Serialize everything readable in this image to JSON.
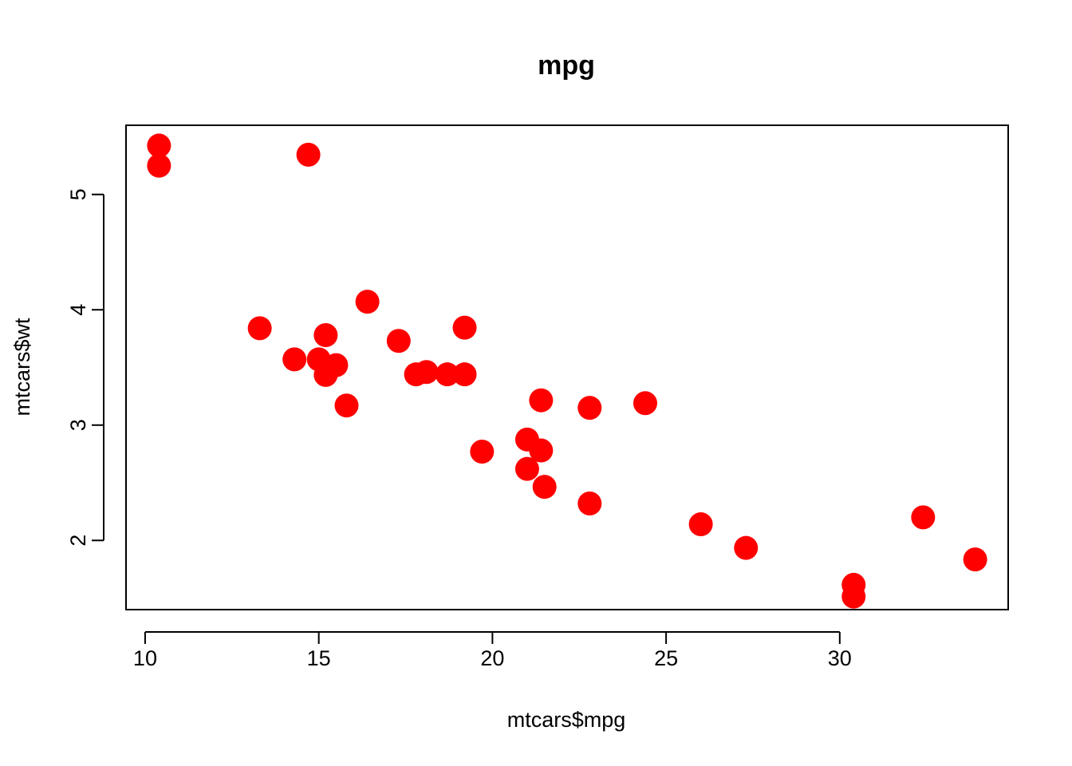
{
  "chart_data": {
    "type": "scatter",
    "title": "mpg",
    "xlabel": "mtcars$mpg",
    "ylabel": "mtcars$wt",
    "xlim": [
      9.45,
      34.85
    ],
    "ylim": [
      1.4,
      5.6
    ],
    "x_ticks": [
      10,
      15,
      20,
      25,
      30
    ],
    "y_ticks": [
      2,
      3,
      4,
      5
    ],
    "grid": false,
    "legend": "none",
    "point_color": "#ff0000",
    "point_shape": "filled-circle",
    "series": [
      {
        "points": [
          [
            21.0,
            2.62
          ],
          [
            21.0,
            2.875
          ],
          [
            22.8,
            2.32
          ],
          [
            21.4,
            3.215
          ],
          [
            18.7,
            3.44
          ],
          [
            18.1,
            3.46
          ],
          [
            14.3,
            3.57
          ],
          [
            24.4,
            3.19
          ],
          [
            22.8,
            3.15
          ],
          [
            19.2,
            3.44
          ],
          [
            17.8,
            3.44
          ],
          [
            16.4,
            4.07
          ],
          [
            17.3,
            3.73
          ],
          [
            15.2,
            3.78
          ],
          [
            10.4,
            5.25
          ],
          [
            10.4,
            5.424
          ],
          [
            14.7,
            5.345
          ],
          [
            32.4,
            2.2
          ],
          [
            30.4,
            1.615
          ],
          [
            33.9,
            1.835
          ],
          [
            21.5,
            2.465
          ],
          [
            15.5,
            3.52
          ],
          [
            15.2,
            3.435
          ],
          [
            13.3,
            3.84
          ],
          [
            19.2,
            3.845
          ],
          [
            27.3,
            1.935
          ],
          [
            26.0,
            2.14
          ],
          [
            30.4,
            1.513
          ],
          [
            15.8,
            3.17
          ],
          [
            19.7,
            2.77
          ],
          [
            15.0,
            3.57
          ],
          [
            21.4,
            2.78
          ]
        ]
      }
    ]
  }
}
